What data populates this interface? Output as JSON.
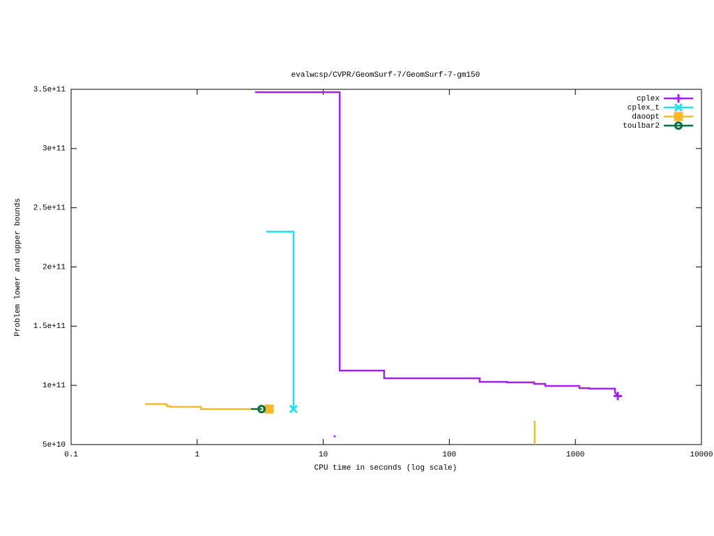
{
  "chart_data": {
    "type": "line",
    "title": "evalwcsp/CVPR/GeomSurf-7/GeomSurf-7-gm150",
    "x_label": "CPU time in seconds (log scale)",
    "y_label": "Problem lower and upper bounds",
    "xlog": true,
    "xlim": [
      0.1,
      10000
    ],
    "xticks": [
      0.1,
      1,
      10,
      100,
      1000,
      10000
    ],
    "ylim": [
      50000000000,
      350000000000
    ],
    "yticks": [
      {
        "value": 50000000000,
        "label": "5e+10"
      },
      {
        "value": 100000000000,
        "label": "1e+11"
      },
      {
        "value": 150000000000,
        "label": "1.5e+11"
      },
      {
        "value": 200000000000,
        "label": "2e+11"
      },
      {
        "value": 250000000000,
        "label": "2.5e+11"
      },
      {
        "value": 300000000000,
        "label": "3e+11"
      },
      {
        "value": 350000000000,
        "label": "3.5e+11"
      }
    ],
    "legend": "top-right",
    "series": [
      {
        "name": "cplex",
        "color": "#a020f0",
        "marker": "plus",
        "x": [
          2.88,
          13.5,
          13.5,
          30.4,
          30.4,
          174,
          174,
          287,
          287,
          471,
          471,
          577,
          577,
          1076,
          1076,
          1288,
          1288,
          2061,
          2061,
          2170,
          null,
          12.3
        ],
        "values": [
          347600000000,
          347600000000,
          112500000000,
          112500000000,
          106000000000,
          106000000000,
          103000000000,
          103000000000,
          102500000000,
          102500000000,
          101300000000,
          101300000000,
          99500000000,
          99500000000,
          97700000000,
          97700000000,
          97200000000,
          97200000000,
          94000000000,
          91000000000,
          null,
          57000000000
        ]
      },
      {
        "name": "cplex_t",
        "color": "#20e0e8",
        "marker": "cross",
        "x": [
          3.54,
          5.81,
          5.81
        ],
        "values": [
          229800000000,
          229800000000,
          80000000000
        ]
      },
      {
        "name": "daoopt",
        "color": "#f8b828",
        "marker": "square",
        "x": [
          0.386,
          0.573,
          0.573,
          0.61,
          0.61,
          1.07,
          1.07,
          3.72,
          null,
          476,
          476
        ],
        "values": [
          84200000000,
          84200000000,
          82400000000,
          82400000000,
          81800000000,
          81800000000,
          80000000000,
          80000000000,
          null,
          70000000000,
          50000000000
        ]
      },
      {
        "name": "toulbar2",
        "color": "#007040",
        "marker": "circle",
        "x": [
          2.67,
          3.24
        ],
        "values": [
          80000000000,
          80000000000
        ]
      }
    ]
  }
}
